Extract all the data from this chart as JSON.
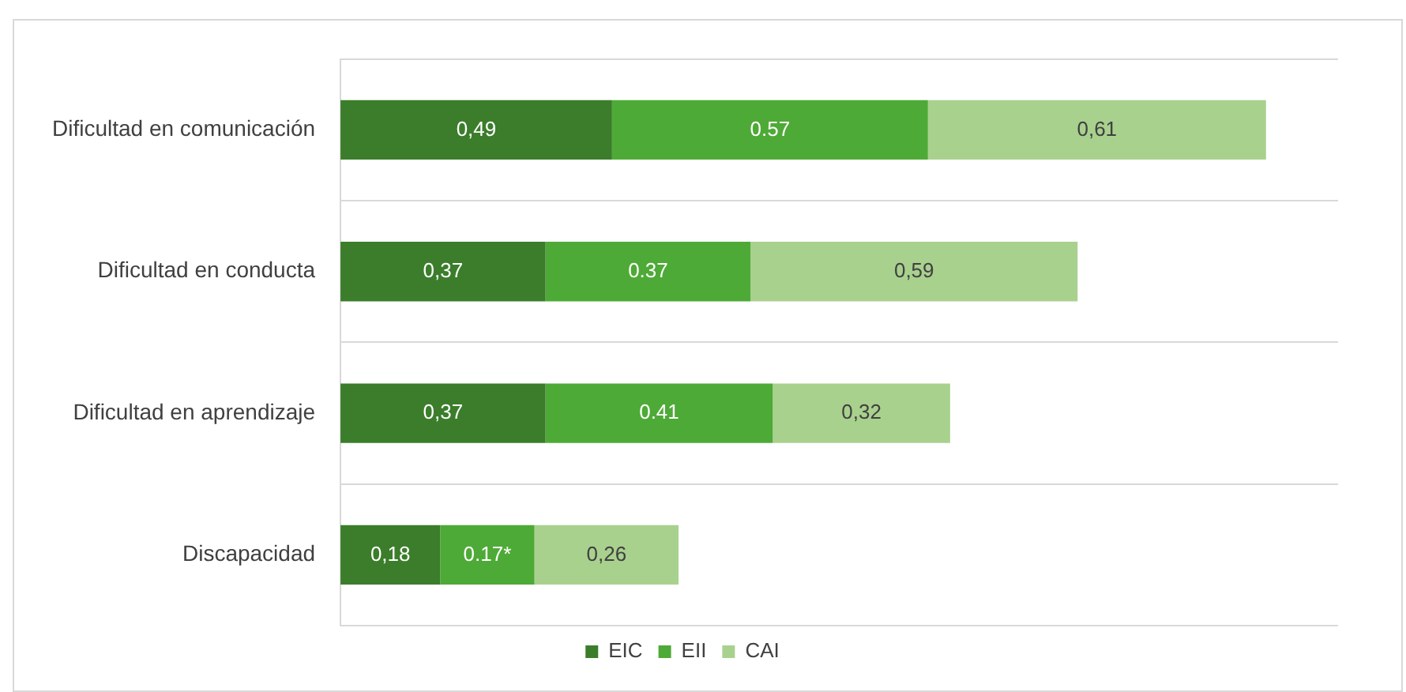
{
  "chart_data": {
    "type": "bar",
    "orientation": "horizontal",
    "stacked": true,
    "categories": [
      "Dificultad en comunicación",
      "Dificultad en conducta",
      "Dificultad en aprendizaje",
      "Discapacidad"
    ],
    "series": [
      {
        "name": "EIC",
        "color": "#3b7d2b",
        "values": [
          0.49,
          0.37,
          0.37,
          0.18
        ],
        "value_labels": [
          "0,49",
          "0,37",
          "0,37",
          "0,18"
        ]
      },
      {
        "name": "EII",
        "color": "#4eaa36",
        "values": [
          0.57,
          0.37,
          0.41,
          0.17
        ],
        "value_labels": [
          "0.57",
          "0.37",
          "0.41",
          "0.17*"
        ]
      },
      {
        "name": "CAI",
        "color": "#a9d18e",
        "values": [
          0.61,
          0.59,
          0.32,
          0.26
        ],
        "value_labels": [
          "0,61",
          "0,59",
          "0,32",
          "0,26"
        ]
      }
    ],
    "grid": "y",
    "legend": "bottom"
  }
}
